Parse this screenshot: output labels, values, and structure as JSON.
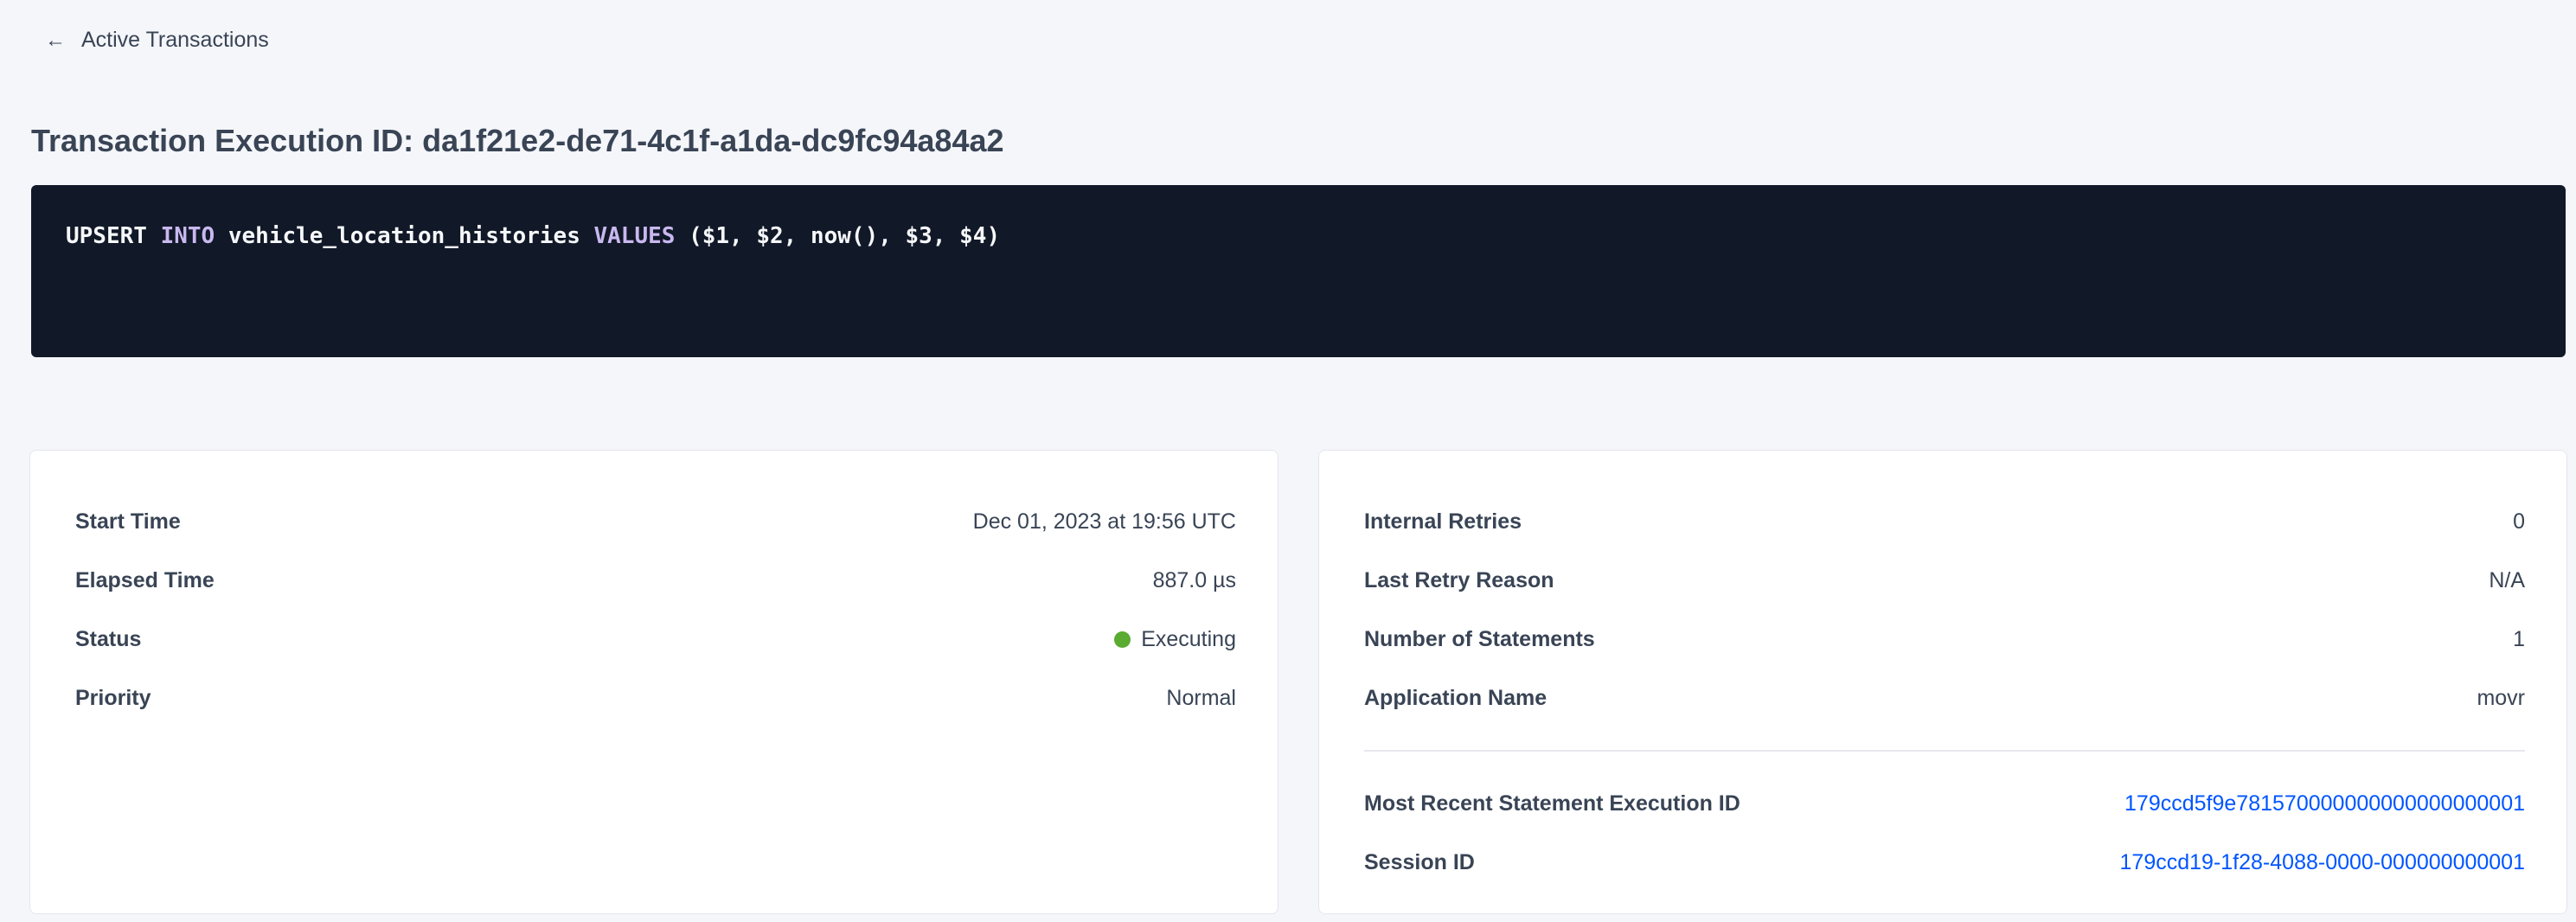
{
  "nav": {
    "back_label": "Active Transactions",
    "back_icon": "arrow-left-icon"
  },
  "page_title": "Transaction Execution ID: da1f21e2-de71-4c1f-a1da-dc9fc94a84a2",
  "statement": {
    "tokens": [
      {
        "text": "UPSERT ",
        "keyword": false
      },
      {
        "text": "INTO",
        "keyword": true
      },
      {
        "text": " vehicle_location_histories ",
        "keyword": false
      },
      {
        "text": "VALUES",
        "keyword": true
      },
      {
        "text": " ($1, $2, now(), $3, $4)",
        "keyword": false
      }
    ]
  },
  "left_card": {
    "rows": [
      {
        "label": "Start Time",
        "value": "Dec 01, 2023 at 19:56 UTC"
      },
      {
        "label": "Elapsed Time",
        "value": "887.0 µs"
      },
      {
        "label": "Status",
        "value": "Executing",
        "status_color": "#5aab31"
      },
      {
        "label": "Priority",
        "value": "Normal"
      }
    ]
  },
  "right_card": {
    "rows": [
      {
        "label": "Internal Retries",
        "value": "0"
      },
      {
        "label": "Last Retry Reason",
        "value": "N/A"
      },
      {
        "label": "Number of Statements",
        "value": "1"
      },
      {
        "label": "Application Name",
        "value": "movr"
      }
    ],
    "links": [
      {
        "label": "Most Recent Statement Execution ID",
        "value": "179ccd5f9e781570000000000000000001"
      },
      {
        "label": "Session ID",
        "value": "179ccd19-1f28-4088-0000-000000000001"
      }
    ]
  },
  "colors": {
    "code_bg": "#111827",
    "keyword": "#c9b8f0",
    "link": "#0055ff",
    "status_executing": "#5aab31"
  }
}
